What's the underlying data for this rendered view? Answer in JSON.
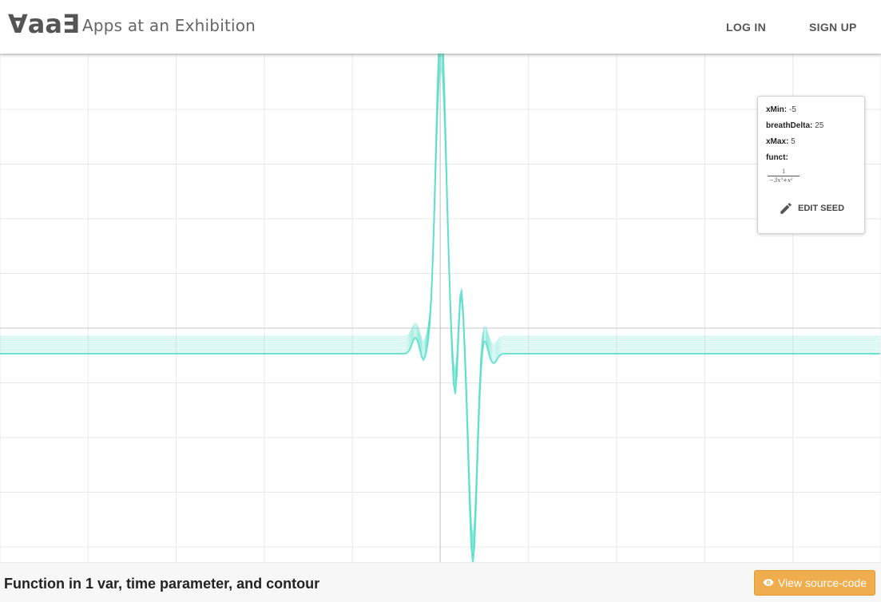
{
  "header": {
    "logo": "∀aa∃",
    "title": "Apps at an Exhibition",
    "login_label": "LOG IN",
    "signup_label": "SIGN UP"
  },
  "seed": {
    "xmin_label": "xMin:",
    "xmin_value": "-5",
    "breath_label": "breathDelta:",
    "breath_value": "25",
    "xmax_label": "xMax:",
    "xmax_value": "5",
    "funct_label": "funct:",
    "funct_num": "1",
    "funct_den": "−3x³+x²",
    "edit_label": "EDIT SEED"
  },
  "footer": {
    "title": "Function in 1 var, time parameter, and contour",
    "source_label": "View source-code"
  },
  "colors": {
    "curve": "#5fe0cc",
    "grid": "#e8e8e8",
    "axis": "#c8c8c8",
    "button": "#f0ad4e"
  },
  "icons": [
    "pencil-icon",
    "eye-icon"
  ]
}
